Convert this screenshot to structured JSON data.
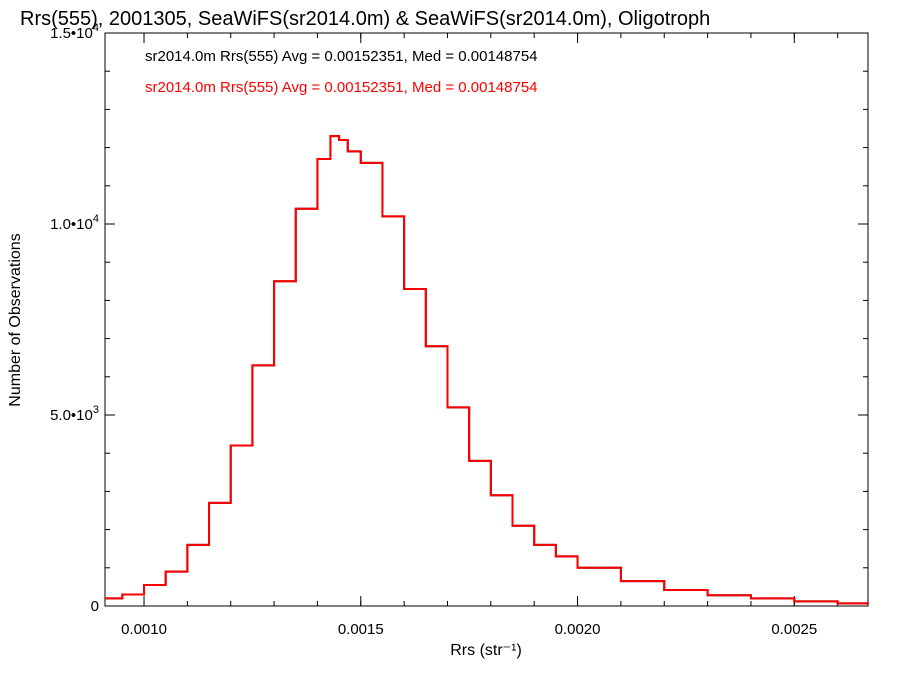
{
  "chart_data": {
    "type": "line",
    "title": "Rrs(555), 2001305, SeaWiFS(sr2014.0m) & SeaWiFS(sr2014.0m), Oligotroph",
    "xlabel": "Rrs (str⁻¹)",
    "ylabel": "Number of Observations",
    "xlim": [
      0.00091,
      0.00267
    ],
    "ylim": [
      0,
      15000
    ],
    "grid": false,
    "step": true,
    "x_ticks": [
      {
        "value": 0.001,
        "label": "0.0010"
      },
      {
        "value": 0.0015,
        "label": "0.0015"
      },
      {
        "value": 0.002,
        "label": "0.0020"
      },
      {
        "value": 0.0025,
        "label": "0.0025"
      }
    ],
    "y_ticks": [
      {
        "value": 0,
        "mantissa": "0",
        "exp": ""
      },
      {
        "value": 5000,
        "mantissa": "5.0•10",
        "exp": "3"
      },
      {
        "value": 10000,
        "mantissa": "1.0•10",
        "exp": "4"
      },
      {
        "value": 15000,
        "mantissa": "1.5•10",
        "exp": "4"
      }
    ],
    "annotations": [
      {
        "text": "sr2014.0m Rrs(555) Avg = 0.00152351, Med = 0.00148754",
        "color": "#000000"
      },
      {
        "text": "sr2014.0m Rrs(555) Avg = 0.00152351, Med = 0.00148754",
        "color": "#ff0000"
      }
    ],
    "series": [
      {
        "color_primary": "#000000",
        "color_overlay": "#ff0000",
        "x": [
          0.00091,
          0.00095,
          0.001,
          0.00105,
          0.0011,
          0.00115,
          0.0012,
          0.00125,
          0.0013,
          0.00135,
          0.0014,
          0.00143,
          0.00145,
          0.00147,
          0.0015,
          0.00155,
          0.0016,
          0.00165,
          0.0017,
          0.00175,
          0.0018,
          0.00185,
          0.0019,
          0.00195,
          0.002,
          0.0021,
          0.0022,
          0.0023,
          0.0024,
          0.0025,
          0.0026,
          0.00267
        ],
        "y": [
          200,
          300,
          550,
          900,
          1600,
          2700,
          4200,
          6300,
          8500,
          10400,
          11700,
          12300,
          12200,
          11900,
          11600,
          10200,
          8300,
          6800,
          5200,
          3800,
          2900,
          2100,
          1600,
          1300,
          1000,
          650,
          420,
          280,
          200,
          120,
          70,
          50
        ]
      }
    ]
  }
}
